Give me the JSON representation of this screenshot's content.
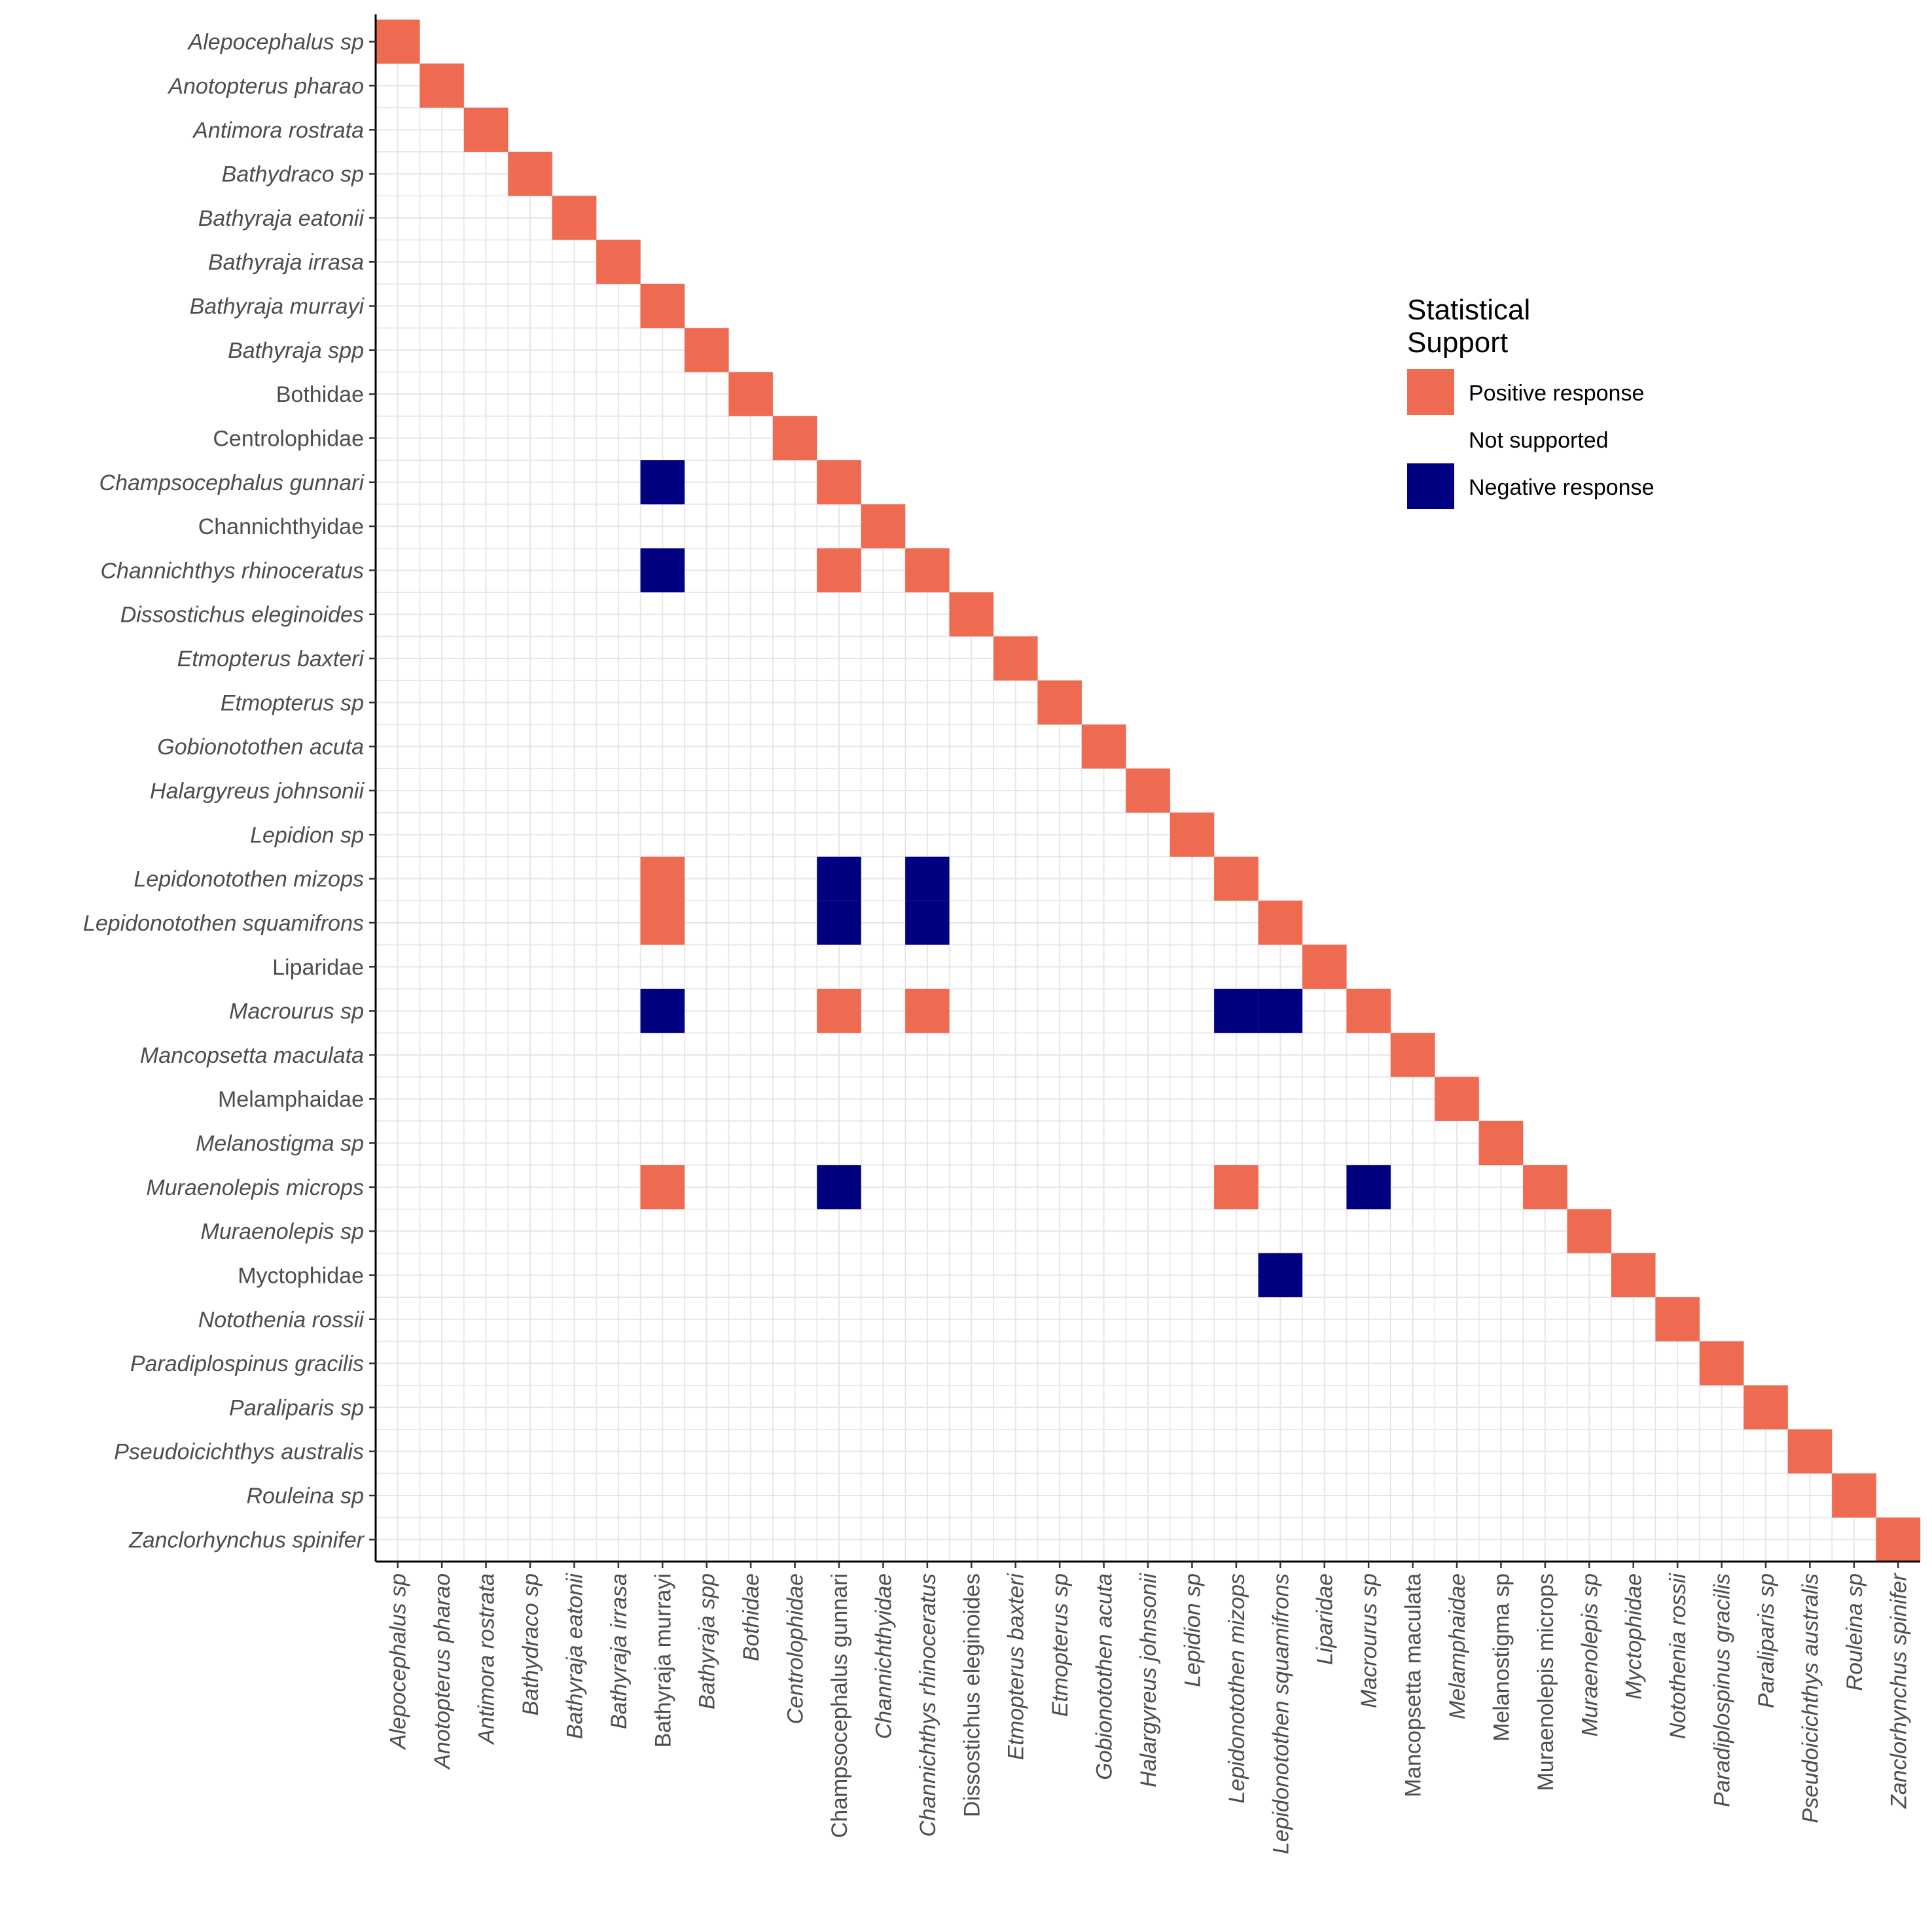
{
  "colors": {
    "positive": "#EE6A50",
    "negative": "#000080",
    "not_supported": "#FFFFFF",
    "grid": "#E6E6E6"
  },
  "chart_data": {
    "type": "heatmap",
    "title": "",
    "xlabel": "",
    "ylabel": "",
    "categories": [
      {
        "name": "Alepocephalus sp",
        "italic": true
      },
      {
        "name": "Anotopterus pharao",
        "italic": true
      },
      {
        "name": "Antimora rostrata",
        "italic": true
      },
      {
        "name": "Bathydraco sp",
        "italic": true
      },
      {
        "name": "Bathyraja eatonii",
        "italic": true
      },
      {
        "name": "Bathyraja irrasa",
        "italic": true
      },
      {
        "name": "Bathyraja murrayi",
        "italic": true
      },
      {
        "name": "Bathyraja spp",
        "italic": true
      },
      {
        "name": "Bothidae",
        "italic": false
      },
      {
        "name": "Centrolophidae",
        "italic": false
      },
      {
        "name": "Champsocephalus gunnari",
        "italic": true
      },
      {
        "name": "Channichthyidae",
        "italic": false
      },
      {
        "name": "Channichthys rhinoceratus",
        "italic": true
      },
      {
        "name": "Dissostichus eleginoides",
        "italic": true
      },
      {
        "name": "Etmopterus baxteri",
        "italic": true
      },
      {
        "name": "Etmopterus sp",
        "italic": true
      },
      {
        "name": "Gobionotothen acuta",
        "italic": true
      },
      {
        "name": "Halargyreus johnsonii",
        "italic": true
      },
      {
        "name": "Lepidion sp",
        "italic": true
      },
      {
        "name": "Lepidonotothen mizops",
        "italic": true
      },
      {
        "name": "Lepidonotothen squamifrons",
        "italic": true
      },
      {
        "name": "Liparidae",
        "italic": false
      },
      {
        "name": "Macrourus sp",
        "italic": true
      },
      {
        "name": "Mancopsetta maculata",
        "italic": true
      },
      {
        "name": "Melamphaidae",
        "italic": false
      },
      {
        "name": "Melanostigma sp",
        "italic": true
      },
      {
        "name": "Muraenolepis microps",
        "italic": true
      },
      {
        "name": "Muraenolepis sp",
        "italic": true
      },
      {
        "name": "Myctophidae",
        "italic": false
      },
      {
        "name": "Notothenia rossii",
        "italic": true
      },
      {
        "name": "Paradiplospinus gracilis",
        "italic": true
      },
      {
        "name": "Paraliparis sp",
        "italic": true
      },
      {
        "name": "Pseudoicichthys australis",
        "italic": true
      },
      {
        "name": "Rouleina sp",
        "italic": true
      },
      {
        "name": "Zanclorhynchus spinifer",
        "italic": true
      }
    ],
    "x_label_italic": [
      true,
      true,
      true,
      true,
      true,
      true,
      false,
      true,
      true,
      true,
      false,
      true,
      true,
      false,
      true,
      true,
      true,
      true,
      true,
      true,
      true,
      true,
      true,
      false,
      true,
      false,
      false,
      true,
      true,
      true,
      true,
      true,
      true,
      true,
      true
    ],
    "diagonal": "Positive response",
    "cells": [
      {
        "row": "Champsocephalus gunnari",
        "col": "Bathyraja murrayi",
        "value": "Negative response"
      },
      {
        "row": "Channichthys rhinoceratus",
        "col": "Bathyraja murrayi",
        "value": "Negative response"
      },
      {
        "row": "Channichthys rhinoceratus",
        "col": "Champsocephalus gunnari",
        "value": "Positive response"
      },
      {
        "row": "Lepidonotothen mizops",
        "col": "Bathyraja murrayi",
        "value": "Positive response"
      },
      {
        "row": "Lepidonotothen mizops",
        "col": "Champsocephalus gunnari",
        "value": "Negative response"
      },
      {
        "row": "Lepidonotothen mizops",
        "col": "Channichthys rhinoceratus",
        "value": "Negative response"
      },
      {
        "row": "Lepidonotothen squamifrons",
        "col": "Bathyraja murrayi",
        "value": "Positive response"
      },
      {
        "row": "Lepidonotothen squamifrons",
        "col": "Champsocephalus gunnari",
        "value": "Negative response"
      },
      {
        "row": "Lepidonotothen squamifrons",
        "col": "Channichthys rhinoceratus",
        "value": "Negative response"
      },
      {
        "row": "Macrourus sp",
        "col": "Bathyraja murrayi",
        "value": "Negative response"
      },
      {
        "row": "Macrourus sp",
        "col": "Champsocephalus gunnari",
        "value": "Positive response"
      },
      {
        "row": "Macrourus sp",
        "col": "Channichthys rhinoceratus",
        "value": "Positive response"
      },
      {
        "row": "Macrourus sp",
        "col": "Lepidonotothen mizops",
        "value": "Negative response"
      },
      {
        "row": "Macrourus sp",
        "col": "Lepidonotothen squamifrons",
        "value": "Negative response"
      },
      {
        "row": "Muraenolepis microps",
        "col": "Bathyraja murrayi",
        "value": "Positive response"
      },
      {
        "row": "Muraenolepis microps",
        "col": "Champsocephalus gunnari",
        "value": "Negative response"
      },
      {
        "row": "Muraenolepis microps",
        "col": "Lepidonotothen mizops",
        "value": "Positive response"
      },
      {
        "row": "Muraenolepis microps",
        "col": "Macrourus sp",
        "value": "Negative response"
      },
      {
        "row": "Myctophidae",
        "col": "Lepidonotothen squamifrons",
        "value": "Negative response"
      }
    ],
    "legend": {
      "title": "Statistical Support",
      "title_lines": [
        "Statistical",
        "Support"
      ],
      "placement": "right",
      "entries": [
        {
          "label": "Positive response",
          "color": "#EE6A50"
        },
        {
          "label": "Not supported",
          "color": "#FFFFFF"
        },
        {
          "label": "Negative response",
          "color": "#000080"
        }
      ]
    },
    "grid": true
  }
}
